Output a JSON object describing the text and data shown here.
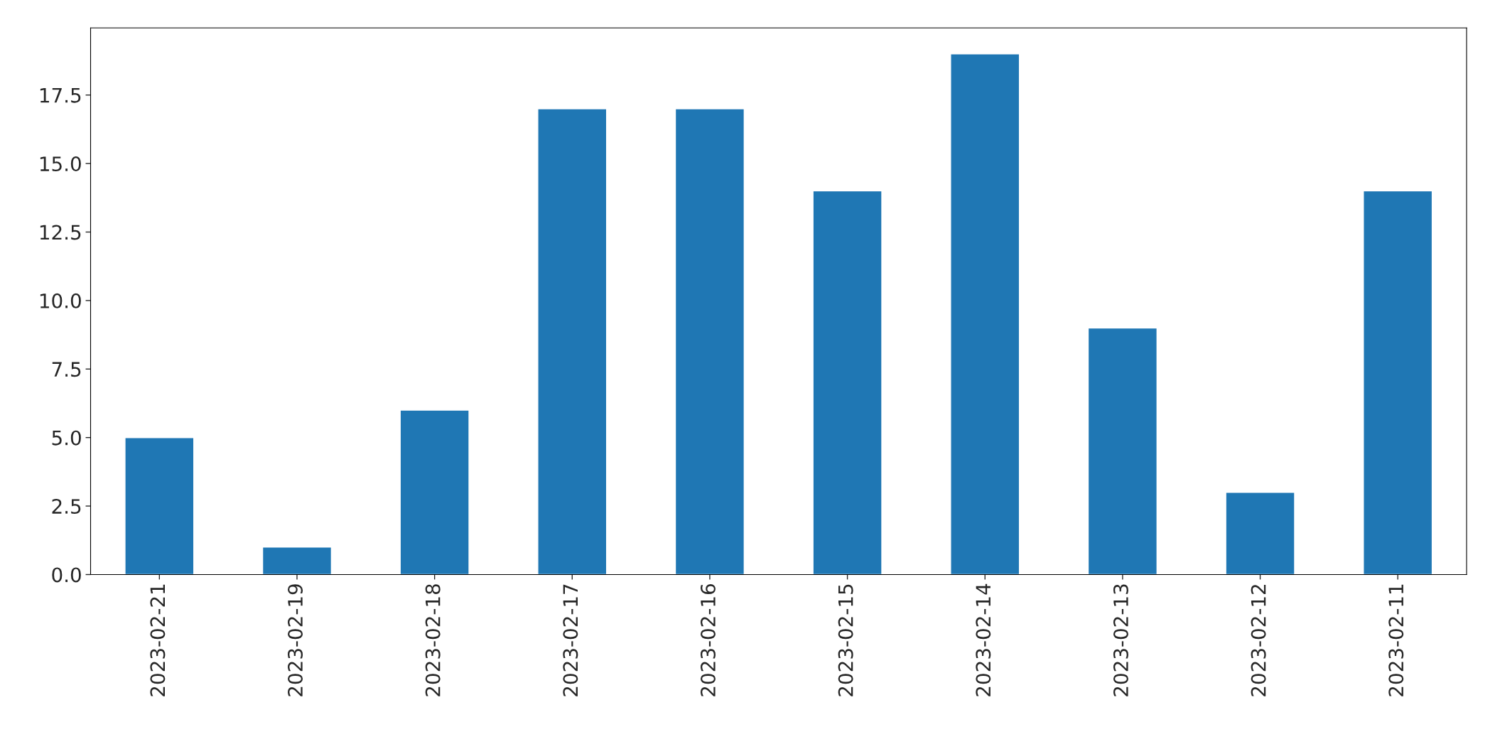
{
  "chart_data": {
    "type": "bar",
    "categories": [
      "2023-02-21",
      "2023-02-19",
      "2023-02-18",
      "2023-02-17",
      "2023-02-16",
      "2023-02-15",
      "2023-02-14",
      "2023-02-13",
      "2023-02-12",
      "2023-02-11"
    ],
    "values": [
      5,
      1,
      6,
      17,
      17,
      14,
      19,
      9,
      3,
      14
    ],
    "color": "#1f77b4",
    "ylim": [
      0,
      19.95
    ],
    "yticks": [
      {
        "value": 0,
        "label": "0.0"
      },
      {
        "value": 2.5,
        "label": "2.5"
      },
      {
        "value": 5,
        "label": "5.0"
      },
      {
        "value": 7.5,
        "label": "7.5"
      },
      {
        "value": 10,
        "label": "10.0"
      },
      {
        "value": 12.5,
        "label": "12.5"
      },
      {
        "value": 15,
        "label": "15.0"
      },
      {
        "value": 17.5,
        "label": "17.5"
      }
    ],
    "grid": false
  }
}
